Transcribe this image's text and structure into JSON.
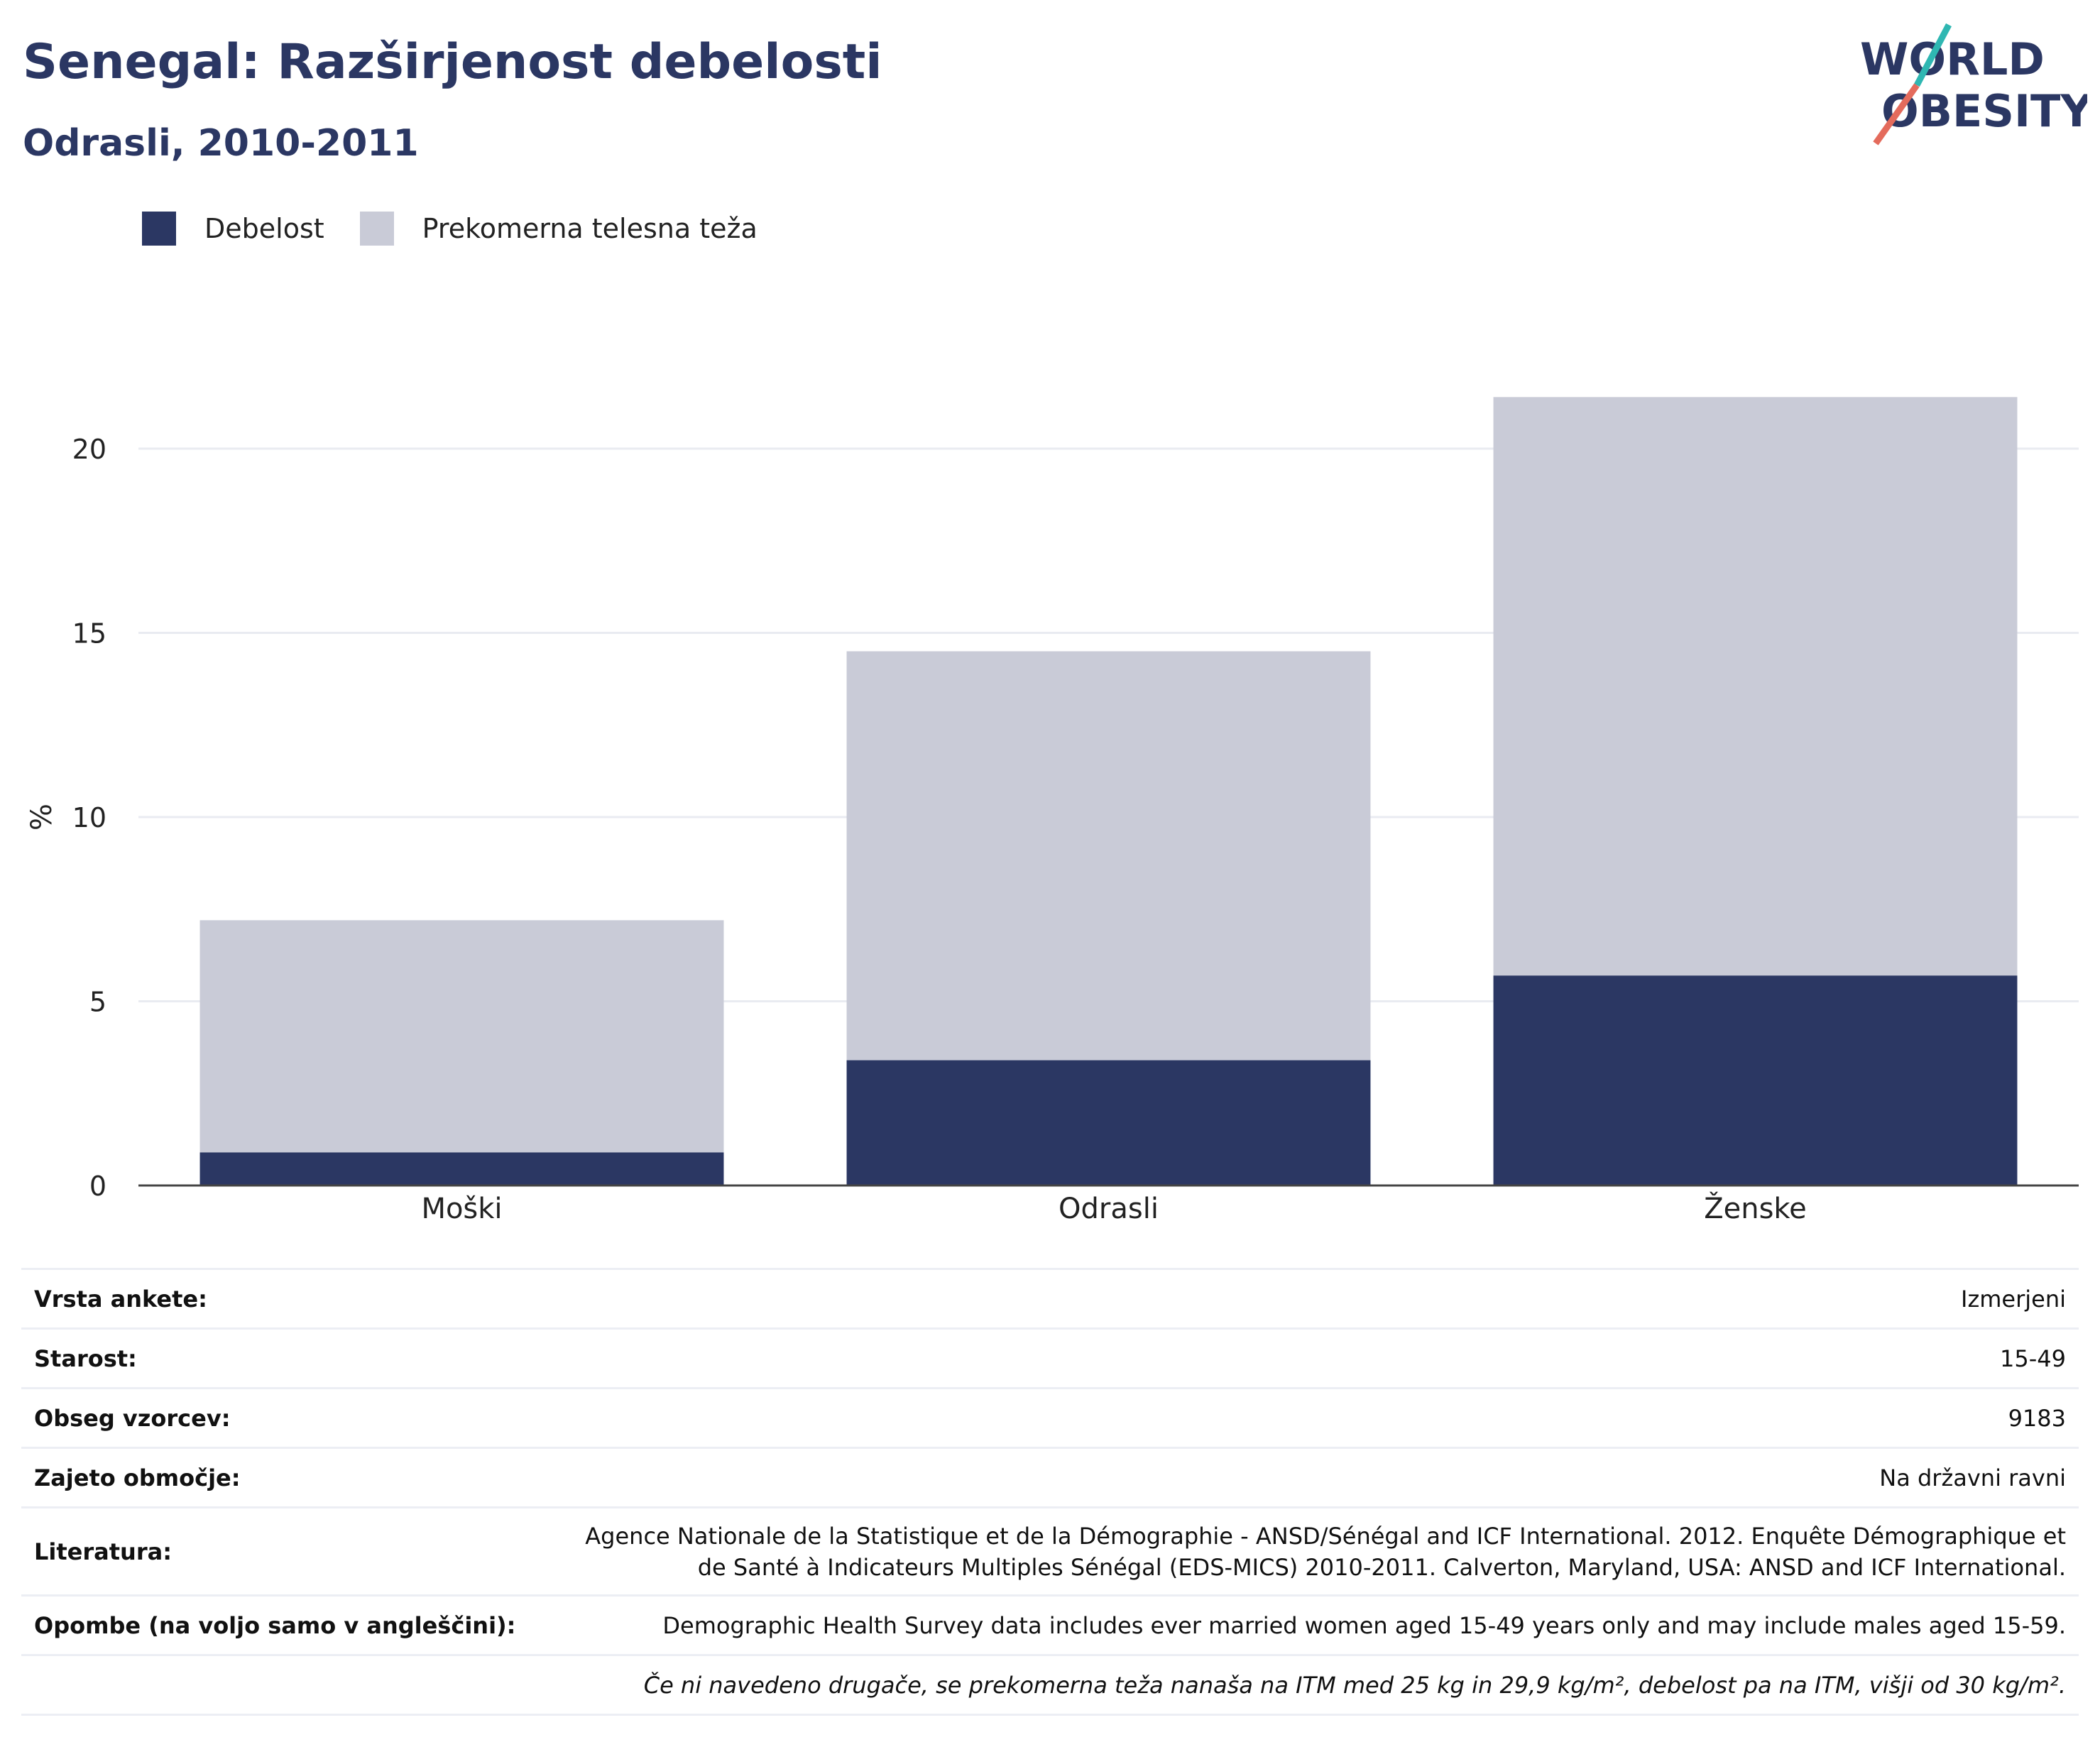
{
  "header": {
    "title": "Senegal: Razširjenost debelosti",
    "subtitle": "Odrasli, 2010-2011"
  },
  "logo": {
    "line1": "WORLD",
    "line2": "OBESITY"
  },
  "colors": {
    "obesity": "#2b3763",
    "overweight": "#c9cbd7",
    "accent_teal": "#2fb7b2",
    "accent_red": "#e46b5c",
    "title": "#2b3763"
  },
  "chart_data": {
    "type": "bar",
    "stacked": true,
    "categories": [
      "Moški",
      "Odrasli",
      "Ženske"
    ],
    "series": [
      {
        "name": "Debelost",
        "values": [
          0.9,
          3.4,
          5.7
        ]
      },
      {
        "name": "Prekomerna telesna teža",
        "values": [
          6.3,
          11.1,
          15.7
        ]
      }
    ],
    "ylabel": "%",
    "yticks": [
      0,
      5,
      10,
      15,
      20
    ],
    "ylim": [
      0,
      22
    ],
    "grid": true,
    "legend_position": "top-left"
  },
  "meta": [
    {
      "label": "Vrsta ankete:",
      "value": "Izmerjeni"
    },
    {
      "label": "Starost:",
      "value": "15-49"
    },
    {
      "label": "Obseg vzorcev:",
      "value": "9183"
    },
    {
      "label": "Zajeto območje:",
      "value": "Na državni ravni"
    },
    {
      "label": "Literatura:",
      "value": "Agence Nationale de la Statistique et de la Démographie - ANSD/Sénégal and ICF International. 2012. Enquête Démographique et de Santé à Indicateurs Multiples Sénégal (EDS-MICS) 2010-2011. Calverton, Maryland, USA: ANSD and ICF International."
    },
    {
      "label": "Opombe (na voljo samo v angleščini):",
      "value": "Demographic Health Survey data includes ever married women aged 15-49 years only and may include males aged 15-59."
    },
    {
      "label": "",
      "value": "Če ni navedeno drugače, se prekomerna teža nanaša na ITM med 25 kg in 29,9 kg/m², debelost pa na ITM, višji od 30 kg/m²."
    }
  ]
}
